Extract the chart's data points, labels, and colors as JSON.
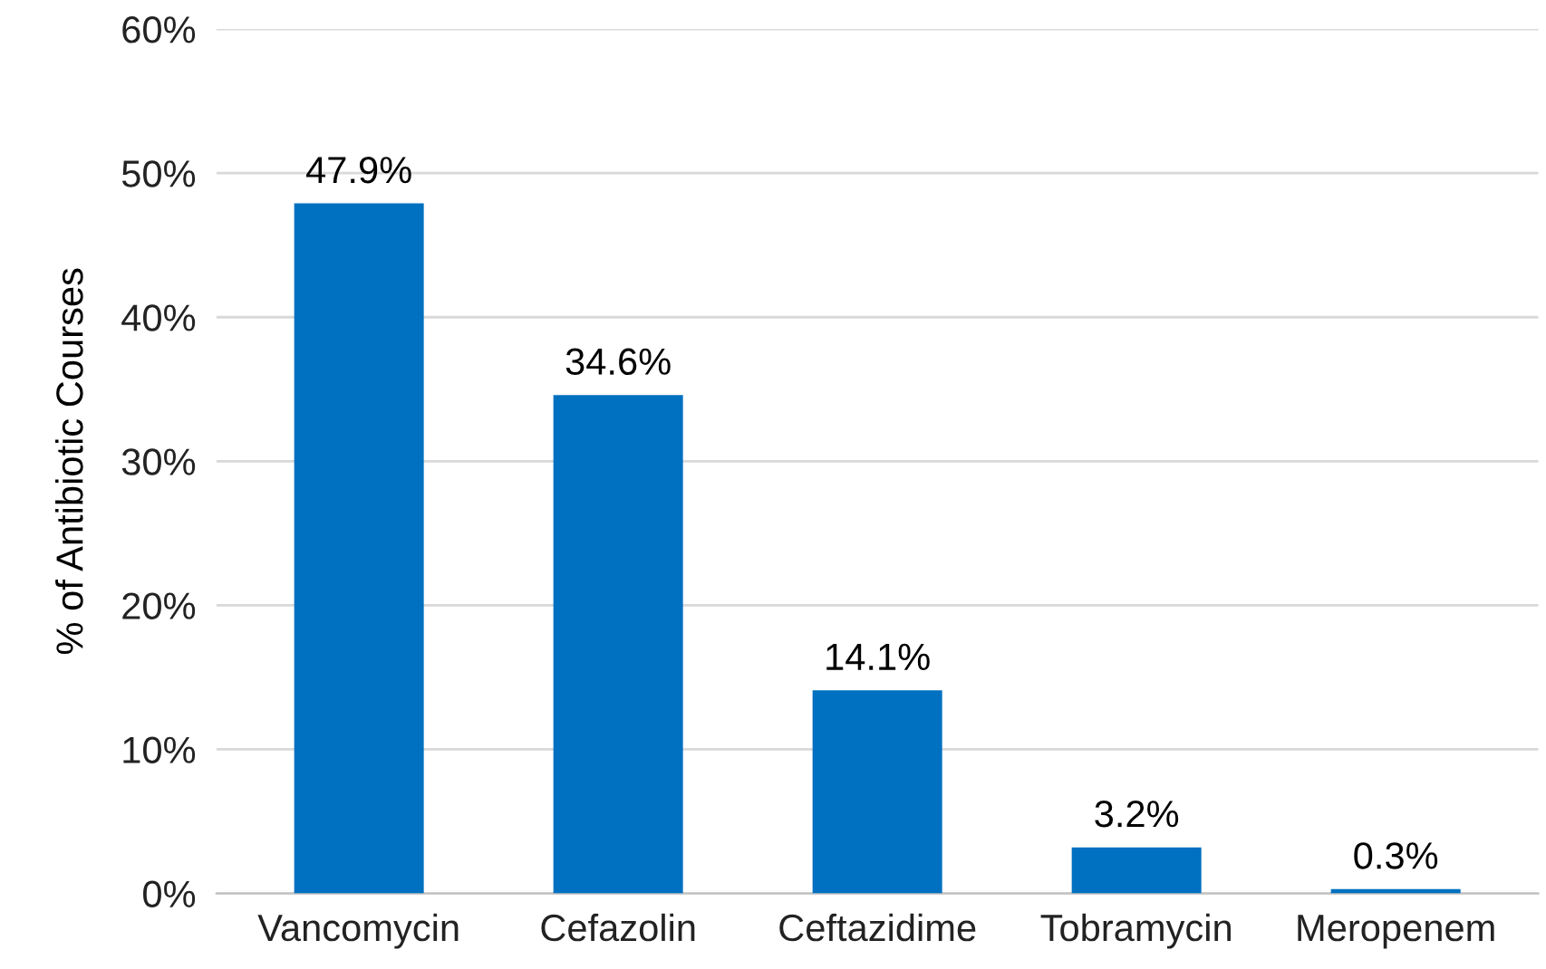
{
  "chart_data": {
    "type": "bar",
    "ylabel": "% of Antibiotic Courses",
    "categories": [
      "Vancomycin",
      "Cefazolin",
      "Ceftazidime",
      "Tobramycin",
      "Meropenem"
    ],
    "values": [
      47.9,
      34.6,
      14.1,
      3.2,
      0.3
    ],
    "value_labels": [
      "47.9%",
      "34.6%",
      "14.1%",
      "3.2%",
      "0.3%"
    ],
    "color": "#0070c0",
    "ylim": [
      0,
      60
    ],
    "yticks": [
      {
        "value": 0,
        "label": "0%"
      },
      {
        "value": 10,
        "label": "10%"
      },
      {
        "value": 20,
        "label": "20%"
      },
      {
        "value": 30,
        "label": "30%"
      },
      {
        "value": 40,
        "label": "40%"
      },
      {
        "value": 50,
        "label": "50%"
      },
      {
        "value": 60,
        "label": "60%"
      }
    ],
    "grid": "y",
    "legend": false
  }
}
